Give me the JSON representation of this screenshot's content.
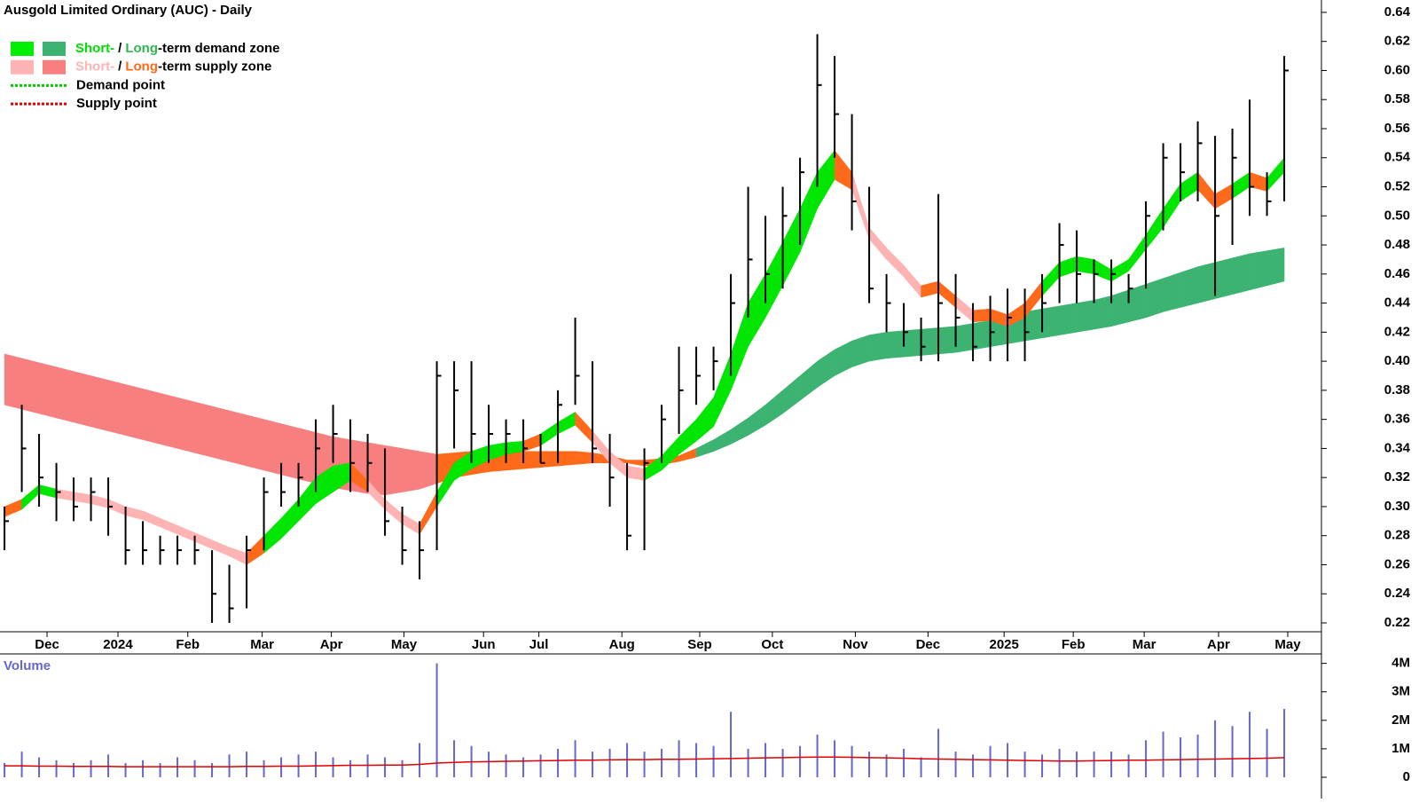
{
  "chart_data": {
    "type": "hlc",
    "title": "Ausgold Limited Ordinary (AUC) - Daily",
    "xlim": [
      -0.26,
      76.15
    ],
    "xticks": [
      {
        "value": 2.46,
        "label": "Dec"
      },
      {
        "value": 6.56,
        "label": "2024"
      },
      {
        "value": 10.6,
        "label": "Feb"
      },
      {
        "value": 14.9,
        "label": "Mar"
      },
      {
        "value": 18.9,
        "label": "Apr"
      },
      {
        "value": 23.1,
        "label": "May"
      },
      {
        "value": 27.7,
        "label": "Jun"
      },
      {
        "value": 30.9,
        "label": "Jul"
      },
      {
        "value": 35.7,
        "label": "Aug"
      },
      {
        "value": 40.2,
        "label": "Sep"
      },
      {
        "value": 44.4,
        "label": "Oct"
      },
      {
        "value": 49.2,
        "label": "Nov"
      },
      {
        "value": 53.4,
        "label": "Dec"
      },
      {
        "value": 57.8,
        "label": "2025"
      },
      {
        "value": 61.8,
        "label": "Feb"
      },
      {
        "value": 65.9,
        "label": "Mar"
      },
      {
        "value": 70.2,
        "label": "Apr"
      },
      {
        "value": 74.2,
        "label": "May"
      }
    ],
    "ylim": [
      0.2139,
      0.6485
    ],
    "yticks": [
      {
        "value": 0.22,
        "label": "0.22"
      },
      {
        "value": 0.24,
        "label": "0.24"
      },
      {
        "value": 0.26,
        "label": "0.26"
      },
      {
        "value": 0.28,
        "label": "0.28"
      },
      {
        "value": 0.3,
        "label": "0.30"
      },
      {
        "value": 0.32,
        "label": "0.32"
      },
      {
        "value": 0.34,
        "label": "0.34"
      },
      {
        "value": 0.36,
        "label": "0.36"
      },
      {
        "value": 0.38,
        "label": "0.38"
      },
      {
        "value": 0.4,
        "label": "0.40"
      },
      {
        "value": 0.42,
        "label": "0.42"
      },
      {
        "value": 0.44,
        "label": "0.44"
      },
      {
        "value": 0.46,
        "label": "0.46"
      },
      {
        "value": 0.48,
        "label": "0.48"
      },
      {
        "value": 0.5,
        "label": "0.50"
      },
      {
        "value": 0.52,
        "label": "0.52"
      },
      {
        "value": 0.54,
        "label": "0.54"
      },
      {
        "value": 0.56,
        "label": "0.56"
      },
      {
        "value": 0.58,
        "label": "0.58"
      },
      {
        "value": 0.6,
        "label": "0.60"
      },
      {
        "value": 0.62,
        "label": "0.62"
      },
      {
        "value": 0.64,
        "label": "0.64"
      }
    ],
    "bar_color": "#000000",
    "high": [
      0.3,
      0.37,
      0.35,
      0.33,
      0.32,
      0.32,
      0.32,
      0.3,
      0.29,
      0.28,
      0.28,
      0.28,
      0.27,
      0.26,
      0.28,
      0.32,
      0.33,
      0.33,
      0.36,
      0.37,
      0.36,
      0.35,
      0.34,
      0.3,
      0.29,
      0.4,
      0.4,
      0.4,
      0.37,
      0.36,
      0.36,
      0.35,
      0.38,
      0.43,
      0.4,
      0.35,
      0.33,
      0.34,
      0.37,
      0.41,
      0.41,
      0.41,
      0.46,
      0.52,
      0.5,
      0.52,
      0.54,
      0.625,
      0.61,
      0.57,
      0.52,
      0.46,
      0.44,
      0.43,
      0.515,
      0.46,
      0.44,
      0.445,
      0.45,
      0.45,
      0.46,
      0.495,
      0.49,
      0.47,
      0.47,
      0.46,
      0.51,
      0.55,
      0.55,
      0.565,
      0.555,
      0.56,
      0.58,
      0.53,
      0.61
    ],
    "low": [
      0.27,
      0.31,
      0.3,
      0.29,
      0.29,
      0.29,
      0.28,
      0.26,
      0.26,
      0.26,
      0.26,
      0.26,
      0.22,
      0.22,
      0.23,
      0.27,
      0.3,
      0.3,
      0.31,
      0.33,
      0.31,
      0.31,
      0.28,
      0.26,
      0.25,
      0.27,
      0.34,
      0.33,
      0.33,
      0.33,
      0.33,
      0.33,
      0.33,
      0.37,
      0.33,
      0.3,
      0.27,
      0.27,
      0.33,
      0.35,
      0.37,
      0.38,
      0.39,
      0.43,
      0.44,
      0.45,
      0.48,
      0.52,
      0.54,
      0.49,
      0.44,
      0.42,
      0.41,
      0.4,
      0.4,
      0.41,
      0.4,
      0.4,
      0.4,
      0.4,
      0.42,
      0.44,
      0.44,
      0.44,
      0.44,
      0.44,
      0.45,
      0.49,
      0.51,
      0.51,
      0.445,
      0.48,
      0.5,
      0.5,
      0.51
    ],
    "close": [
      0.29,
      0.34,
      0.32,
      0.31,
      0.3,
      0.31,
      0.3,
      0.27,
      0.27,
      0.27,
      0.27,
      0.27,
      0.24,
      0.23,
      0.27,
      0.31,
      0.31,
      0.32,
      0.34,
      0.35,
      0.33,
      0.33,
      0.29,
      0.27,
      0.27,
      0.39,
      0.38,
      0.35,
      0.35,
      0.35,
      0.34,
      0.33,
      0.37,
      0.39,
      0.34,
      0.32,
      0.28,
      0.33,
      0.36,
      0.38,
      0.39,
      0.4,
      0.44,
      0.47,
      0.46,
      0.5,
      0.53,
      0.59,
      0.57,
      0.51,
      0.45,
      0.44,
      0.42,
      0.41,
      0.44,
      0.43,
      0.41,
      0.42,
      0.43,
      0.42,
      0.44,
      0.48,
      0.46,
      0.46,
      0.46,
      0.45,
      0.5,
      0.54,
      0.53,
      0.55,
      0.5,
      0.54,
      0.52,
      0.51,
      0.6
    ],
    "zones": [
      {
        "upper": [
          0.405,
          0.402,
          0.399,
          0.396,
          0.393,
          0.39,
          0.387,
          0.384,
          0.381,
          0.378,
          0.375,
          0.372,
          0.369,
          0.366,
          0.363,
          0.36,
          0.357,
          0.354,
          0.351,
          0.348,
          0.346,
          0.344,
          0.342,
          0.34,
          0.338,
          0.336,
          0.337,
          0.338,
          0.338,
          0.338,
          0.338,
          0.338,
          0.338,
          0.338,
          0.337,
          0.335,
          0.332,
          0.332,
          0.333,
          0.335,
          0.34,
          0.346,
          0.353,
          0.361,
          0.37,
          0.38,
          0.39,
          0.4,
          0.408,
          0.414,
          0.418,
          0.42,
          0.421,
          0.422,
          0.423,
          0.424,
          0.426,
          0.428,
          0.431,
          0.434,
          0.436,
          0.438,
          0.44,
          0.442,
          0.445,
          0.449,
          0.453,
          0.457,
          0.461,
          0.465,
          0.468,
          0.471,
          0.474,
          0.476,
          0.478
        ],
        "lower": [
          0.37,
          0.367,
          0.364,
          0.361,
          0.358,
          0.355,
          0.352,
          0.349,
          0.346,
          0.343,
          0.34,
          0.337,
          0.334,
          0.331,
          0.328,
          0.325,
          0.322,
          0.319,
          0.316,
          0.313,
          0.311,
          0.309,
          0.308,
          0.31,
          0.312,
          0.316,
          0.32,
          0.322,
          0.324,
          0.325,
          0.326,
          0.327,
          0.328,
          0.329,
          0.33,
          0.33,
          0.33,
          0.328,
          0.329,
          0.331,
          0.334,
          0.338,
          0.343,
          0.349,
          0.356,
          0.364,
          0.373,
          0.382,
          0.39,
          0.396,
          0.4,
          0.402,
          0.403,
          0.404,
          0.405,
          0.406,
          0.408,
          0.41,
          0.412,
          0.414,
          0.416,
          0.418,
          0.42,
          0.422,
          0.424,
          0.427,
          0.43,
          0.434,
          0.437,
          0.44,
          0.443,
          0.446,
          0.449,
          0.452,
          0.455
        ],
        "colors": [
          "#f77f7f",
          "#f77f7f",
          "#f77f7f",
          "#f77f7f",
          "#f77f7f",
          "#f77f7f",
          "#f77f7f",
          "#f77f7f",
          "#f77f7f",
          "#f77f7f",
          "#f77f7f",
          "#f77f7f",
          "#f77f7f",
          "#f77f7f",
          "#f77f7f",
          "#f77f7f",
          "#f77f7f",
          "#f77f7f",
          "#f77f7f",
          "#f77f7f",
          "#f77f7f",
          "#f77f7f",
          "#f77f7f",
          "#f77f7f",
          "#f77f7f",
          "#ff6a1a",
          "#ff6a1a",
          "#ff6a1a",
          "#ff6a1a",
          "#ff6a1a",
          "#ff6a1a",
          "#ff6a1a",
          "#ff6a1a",
          "#ff6a1a",
          "#ff6a1a",
          "#ff6a1a",
          "#ff6a1a",
          "#ff6a1a",
          "#ff6a1a",
          "#ff6a1a",
          "#3cb371",
          "#3cb371",
          "#3cb371",
          "#3cb371",
          "#3cb371",
          "#3cb371",
          "#3cb371",
          "#3cb371",
          "#3cb371",
          "#3cb371",
          "#3cb371",
          "#3cb371",
          "#3cb371",
          "#3cb371",
          "#3cb371",
          "#3cb371",
          "#3cb371",
          "#3cb371",
          "#3cb371",
          "#3cb371",
          "#3cb371",
          "#3cb371",
          "#3cb371",
          "#3cb371",
          "#3cb371",
          "#3cb371",
          "#3cb371",
          "#3cb371",
          "#3cb371",
          "#3cb371",
          "#3cb371",
          "#3cb371",
          "#3cb371",
          "#3cb371",
          "#3cb371"
        ]
      },
      {
        "upper": [
          0.3,
          0.305,
          0.315,
          0.312,
          0.31,
          0.308,
          0.305,
          0.3,
          0.297,
          0.292,
          0.287,
          0.282,
          0.277,
          0.272,
          0.268,
          0.28,
          0.292,
          0.305,
          0.32,
          0.328,
          0.33,
          0.318,
          0.305,
          0.295,
          0.288,
          0.31,
          0.33,
          0.338,
          0.342,
          0.344,
          0.345,
          0.35,
          0.358,
          0.365,
          0.352,
          0.338,
          0.328,
          0.326,
          0.335,
          0.348,
          0.36,
          0.375,
          0.405,
          0.44,
          0.46,
          0.482,
          0.505,
          0.53,
          0.545,
          0.53,
          0.492,
          0.478,
          0.466,
          0.452,
          0.455,
          0.445,
          0.435,
          0.436,
          0.432,
          0.44,
          0.455,
          0.468,
          0.472,
          0.47,
          0.463,
          0.47,
          0.487,
          0.505,
          0.522,
          0.53,
          0.515,
          0.522,
          0.53,
          0.526,
          0.54
        ],
        "lower": [
          0.293,
          0.298,
          0.309,
          0.306,
          0.304,
          0.302,
          0.299,
          0.294,
          0.291,
          0.286,
          0.281,
          0.276,
          0.271,
          0.266,
          0.26,
          0.268,
          0.278,
          0.29,
          0.302,
          0.31,
          0.318,
          0.31,
          0.298,
          0.288,
          0.281,
          0.3,
          0.318,
          0.326,
          0.332,
          0.336,
          0.338,
          0.342,
          0.35,
          0.356,
          0.344,
          0.33,
          0.32,
          0.318,
          0.325,
          0.336,
          0.345,
          0.355,
          0.38,
          0.41,
          0.43,
          0.452,
          0.475,
          0.505,
          0.525,
          0.518,
          0.484,
          0.47,
          0.458,
          0.444,
          0.447,
          0.437,
          0.427,
          0.428,
          0.424,
          0.43,
          0.445,
          0.458,
          0.462,
          0.46,
          0.455,
          0.462,
          0.477,
          0.492,
          0.51,
          0.518,
          0.505,
          0.512,
          0.52,
          0.517,
          0.53
        ],
        "colors": [
          "#ff6a1a",
          "#00e600",
          "#00e600",
          "#ffb3b3",
          "#ffb3b3",
          "#ffb3b3",
          "#ffb3b3",
          "#ffb3b3",
          "#ffb3b3",
          "#ffb3b3",
          "#ffb3b3",
          "#ffb3b3",
          "#ffb3b3",
          "#ffb3b3",
          "#ff6a1a",
          "#00e600",
          "#00e600",
          "#00e600",
          "#00e600",
          "#00e600",
          "#ff6a1a",
          "#ffb3b3",
          "#ffb3b3",
          "#ffb3b3",
          "#ff6a1a",
          "#00e600",
          "#00e600",
          "#00e600",
          "#00e600",
          "#00e600",
          "#ff6a1a",
          "#00e600",
          "#00e600",
          "#ff6a1a",
          "#ffb3b3",
          "#ffb3b3",
          "#ffb3b3",
          "#00e600",
          "#00e600",
          "#00e600",
          "#00e600",
          "#00e600",
          "#00e600",
          "#00e600",
          "#00e600",
          "#00e600",
          "#00e600",
          "#00e600",
          "#ff6a1a",
          "#ffb3b3",
          "#ffb3b3",
          "#ffb3b3",
          "#ffb3b3",
          "#ff6a1a",
          "#ff6a1a",
          "#ffb3b3",
          "#ff6a1a",
          "#ff6a1a",
          "#ff6a1a",
          "#ff6a1a",
          "#00e600",
          "#00e600",
          "#00e600",
          "#00e600",
          "#00e600",
          "#00e600",
          "#00e600",
          "#00e600",
          "#00e600",
          "#ff6a1a",
          "#ff6a1a",
          "#00e600",
          "#ff6a1a",
          "#00e600",
          "#00e600"
        ]
      }
    ],
    "legend": [
      {
        "swatches": [
          "#00ee00",
          "#3cb371"
        ],
        "short": "Short-",
        "sep": "/",
        "long": "Long",
        "rest": "-term demand zone",
        "short_color": "#00dd00",
        "long_color": "#2db84d"
      },
      {
        "swatches": [
          "#ffb3b3",
          "#f77f7f"
        ],
        "short": "Short-",
        "sep": "/",
        "long": "Long",
        "rest": "-term supply zone",
        "short_color": "#ffb3b3",
        "long_color": "#ff6a1a"
      },
      {
        "line_color": "#00cc00",
        "label": "Demand point"
      },
      {
        "line_color": "#e00000",
        "label": "Supply point"
      }
    ],
    "volume": {
      "title": "Volume",
      "color": "#6666cc",
      "ma_color": "#e00000",
      "ylim": [
        0,
        4300000
      ],
      "yticks": [
        0,
        {
          "value": 1000000,
          "label": "1M"
        },
        {
          "value": 2000000,
          "label": "2M"
        },
        {
          "value": 3000000,
          "label": "3M"
        },
        {
          "value": 4000000,
          "label": "4M"
        }
      ],
      "values": [
        500000,
        900000,
        700000,
        600000,
        500000,
        600000,
        800000,
        500000,
        600000,
        500000,
        700000,
        600000,
        500000,
        800000,
        900000,
        600000,
        700000,
        800000,
        900000,
        700000,
        600000,
        800000,
        700000,
        600000,
        1200000,
        4000000,
        1300000,
        1100000,
        900000,
        800000,
        700000,
        800000,
        1000000,
        1300000,
        900000,
        1000000,
        1200000,
        900000,
        1000000,
        1300000,
        1200000,
        1100000,
        2300000,
        1000000,
        1200000,
        1000000,
        1100000,
        1500000,
        1300000,
        1100000,
        900000,
        800000,
        1000000,
        700000,
        1700000,
        900000,
        800000,
        1100000,
        1200000,
        900000,
        800000,
        1000000,
        900000,
        900000,
        900000,
        800000,
        1300000,
        1600000,
        1400000,
        1500000,
        2000000,
        1800000,
        2300000,
        1700000,
        2400000
      ],
      "ma": [
        400000,
        400000,
        390000,
        390000,
        380000,
        380000,
        380000,
        370000,
        370000,
        370000,
        370000,
        370000,
        370000,
        370000,
        380000,
        380000,
        390000,
        390000,
        400000,
        410000,
        420000,
        420000,
        430000,
        430000,
        450000,
        500000,
        520000,
        540000,
        550000,
        560000,
        570000,
        580000,
        590000,
        600000,
        600000,
        610000,
        620000,
        620000,
        630000,
        630000,
        640000,
        650000,
        660000,
        670000,
        680000,
        690000,
        700000,
        710000,
        710000,
        700000,
        690000,
        680000,
        670000,
        650000,
        640000,
        630000,
        620000,
        610000,
        600000,
        590000,
        580000,
        570000,
        570000,
        580000,
        590000,
        600000,
        600000,
        610000,
        620000,
        630000,
        640000,
        650000,
        660000,
        670000,
        690000
      ]
    }
  }
}
